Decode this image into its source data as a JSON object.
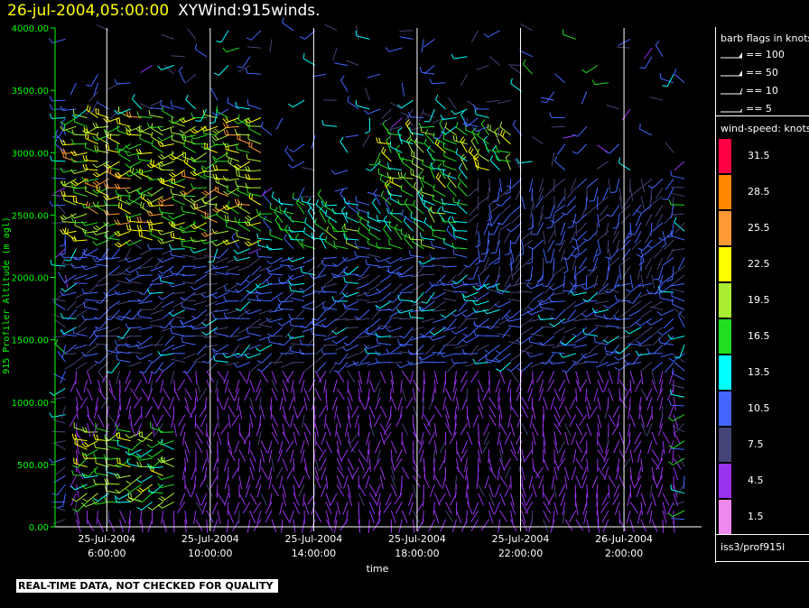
{
  "header": {
    "time": "26-jul-2004,05:00:00",
    "name": "XYWind:915winds."
  },
  "footer": {
    "notice": "REAL-TIME DATA, NOT CHECKED FOR QUALITY"
  },
  "legend": {
    "barb_title": "barb flags in knots",
    "flags": [
      {
        "label": "== 100",
        "value": 100
      },
      {
        "label": "== 50",
        "value": 50
      },
      {
        "label": "== 10",
        "value": 10
      },
      {
        "label": "== 5",
        "value": 5
      }
    ],
    "speed_title": "wind-speed: knots",
    "speed_bins": [
      {
        "label": "31.5",
        "color": "#ff0044"
      },
      {
        "label": "28.5",
        "color": "#ff8800"
      },
      {
        "label": "25.5",
        "color": "#ff9933"
      },
      {
        "label": "22.5",
        "color": "#ffff00"
      },
      {
        "label": "19.5",
        "color": "#aaee33"
      },
      {
        "label": "16.5",
        "color": "#22dd22"
      },
      {
        "label": "13.5",
        "color": "#00ffff"
      },
      {
        "label": "10.5",
        "color": "#4466ff"
      },
      {
        "label": "7.5",
        "color": "#444477"
      },
      {
        "label": "4.5",
        "color": "#9933ee"
      },
      {
        "label": "1.5",
        "color": "#ee88ee"
      }
    ],
    "source": "iss3/prof915l"
  },
  "chart_data": {
    "type": "wind-barb time-height",
    "title": "XYWind:915winds.",
    "xlabel": "time",
    "ylabel": "915 Profiler Altitude (m agl)",
    "x_ticks": [
      {
        "date": "25-Jul-2004",
        "time": "6:00:00"
      },
      {
        "date": "25-Jul-2004",
        "time": "10:00:00"
      },
      {
        "date": "25-Jul-2004",
        "time": "14:00:00"
      },
      {
        "date": "25-Jul-2004",
        "time": "18:00:00"
      },
      {
        "date": "25-Jul-2004",
        "time": "22:00:00"
      },
      {
        "date": "26-Jul-2004",
        "time": "2:00:00"
      }
    ],
    "xlim": [
      "25-Jul-2004 04:00",
      "26-Jul-2004 05:00"
    ],
    "ylim": [
      0,
      4000
    ],
    "y_ticks": [
      "0.00",
      "500.00",
      "1000.00",
      "1500.00",
      "2000.00",
      "2500.00",
      "3000.00",
      "3500.00",
      "4000.00"
    ],
    "grid": "vertical lines at x ticks",
    "colors": {
      "axis": "#00ff00",
      "grid": "#ffffff"
    },
    "speed_regions": [
      {
        "time_start": "04:30",
        "time_end": "12:00",
        "alt_min": 2300,
        "alt_max": 3300,
        "speed_kt": 20,
        "dir_deg": 270
      },
      {
        "time_start": "12:00",
        "time_end": "21:00",
        "alt_min": 1700,
        "alt_max": 2600,
        "speed_kt": 15,
        "dir_deg": 300
      },
      {
        "time_start": "17:00",
        "time_end": "22:00",
        "alt_min": 2600,
        "alt_max": 3200,
        "speed_kt": 18,
        "dir_deg": 310
      },
      {
        "time_start": "04:30",
        "time_end": "26-Jul 04:00",
        "alt_min": 1300,
        "alt_max": 2200,
        "speed_kt": 10,
        "dir_deg": 250
      },
      {
        "time_start": "04:30",
        "time_end": "26-Jul 04:00",
        "alt_min": 50,
        "alt_max": 1300,
        "speed_kt": 5,
        "dir_deg": 180
      },
      {
        "time_start": "20:00",
        "time_end": "26-Jul 04:00",
        "alt_min": 2000,
        "alt_max": 2800,
        "speed_kt": 9,
        "dir_deg": 200
      },
      {
        "time_start": "05:00",
        "time_end": "09:00",
        "alt_min": 200,
        "alt_max": 800,
        "speed_kt": 18,
        "dir_deg": 260
      }
    ]
  }
}
